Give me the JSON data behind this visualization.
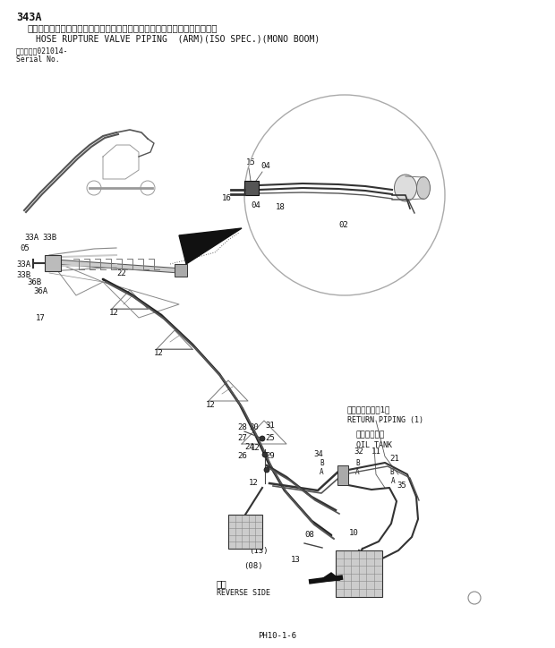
{
  "title_line1": "343A",
  "title_line2": "ホースラプチャーバルブ配管（アーム）　（ＩＳＯ仕様）　（モノブーム）",
  "title_line3": "HOSE RUPTURE VALVE PIPING  (ARM)(ISO SPEC.)(MONO BOOM)",
  "serial_line1": "適用号機　021014-",
  "serial_line2": "Serial No.",
  "page_num": "PH10-1-6",
  "bg_color": "#ffffff",
  "text_color": "#111111",
  "label_fontsize": 6.5
}
